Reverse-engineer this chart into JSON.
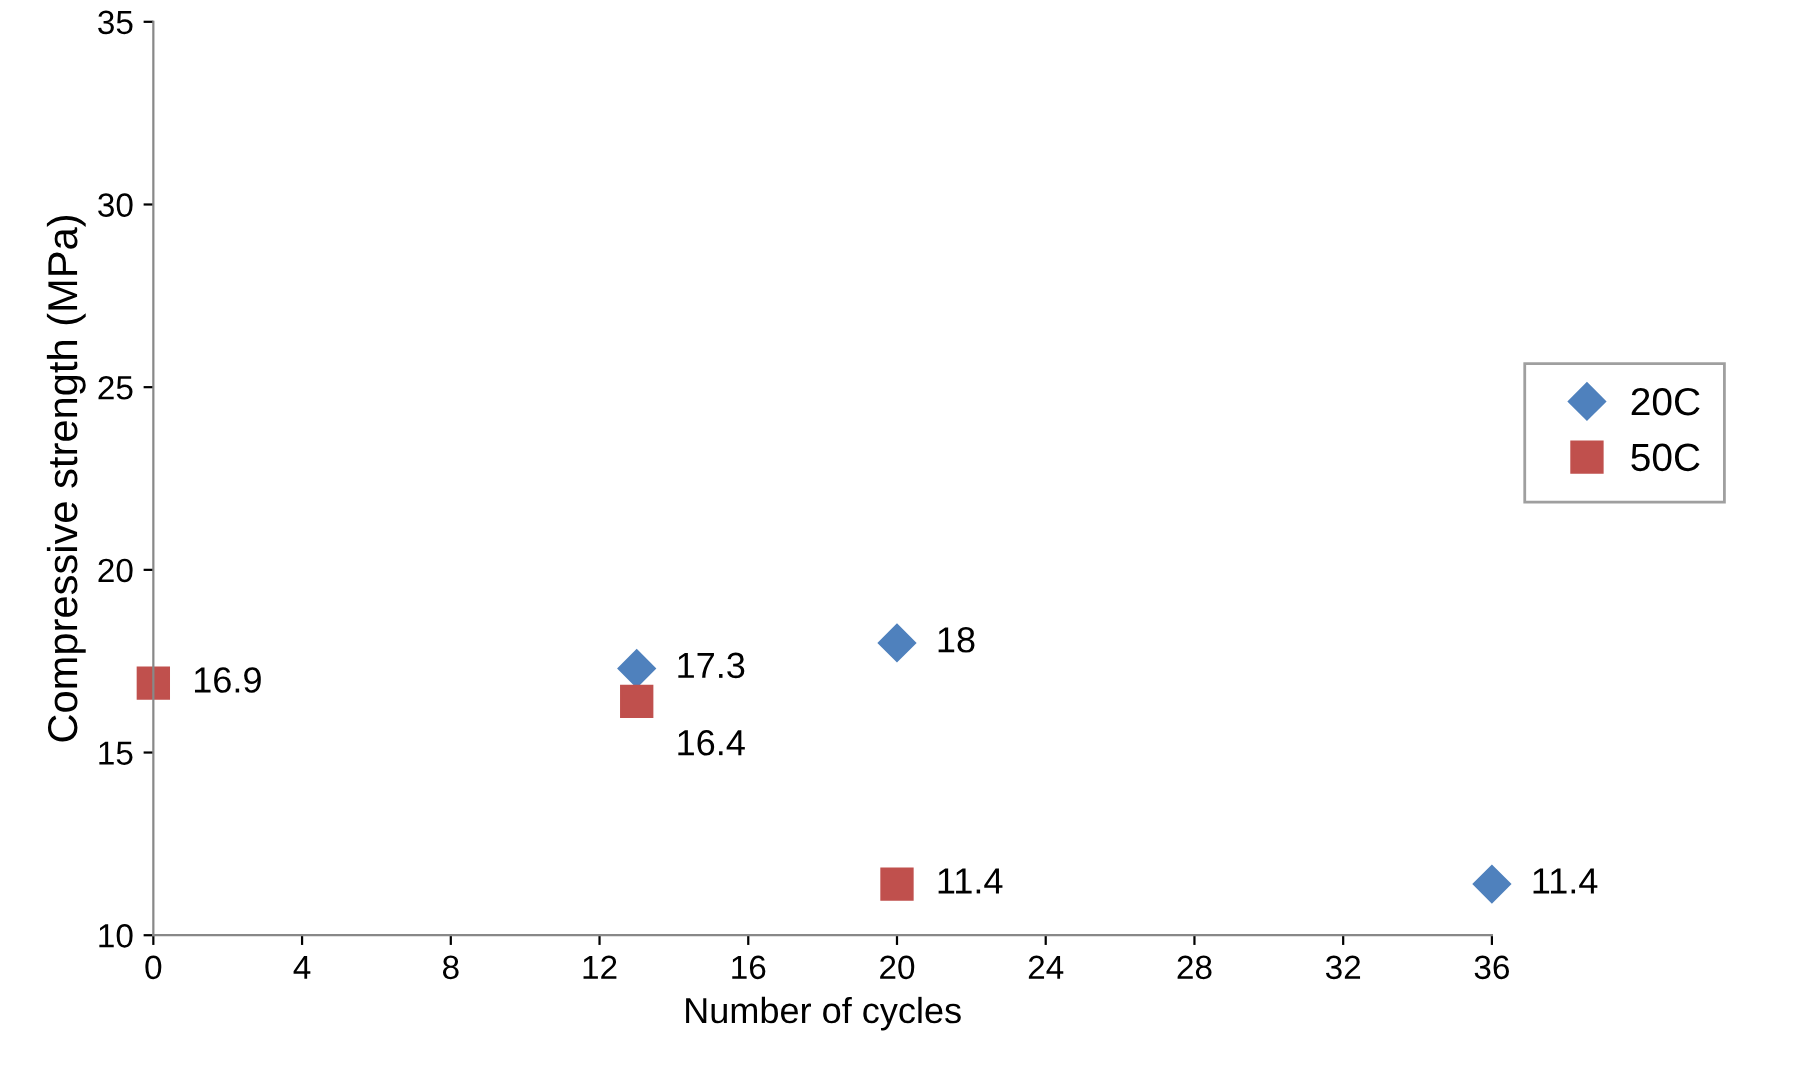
{
  "chart_data": {
    "type": "scatter",
    "xlabel": "Number of cycles",
    "ylabel": "Compressive strength (MPa)",
    "xlim": [
      0,
      36
    ],
    "xticks": [
      0,
      4,
      8,
      12,
      16,
      20,
      24,
      28,
      32,
      36
    ],
    "ylim": [
      10,
      35
    ],
    "yticks": [
      10,
      15,
      20,
      25,
      30,
      35
    ],
    "grid": false,
    "legend": "right",
    "data_labels": true,
    "series": [
      {
        "name": "20C",
        "color": "#4f81bd",
        "marker": "diamond",
        "x": [
          13,
          20,
          36
        ],
        "values": [
          17.3,
          18,
          11.4
        ]
      },
      {
        "name": "50C",
        "color": "#c0504d",
        "marker": "square",
        "x": [
          0,
          13,
          20
        ],
        "values": [
          16.9,
          16.4,
          11.4
        ]
      }
    ]
  }
}
